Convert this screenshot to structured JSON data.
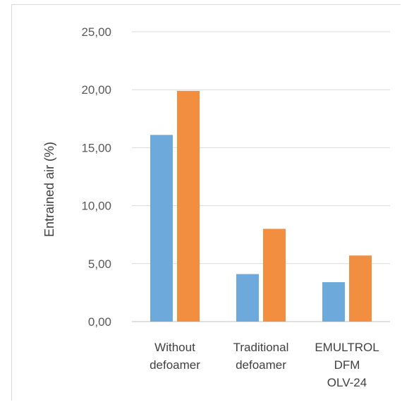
{
  "chart_data": {
    "type": "bar",
    "title": "",
    "xlabel": "",
    "ylabel": "Entrained air (%)",
    "ylim": [
      0,
      25
    ],
    "yticks": [
      "0,00",
      "5,00",
      "10,00",
      "15,00",
      "20,00",
      "25,00"
    ],
    "grid": true,
    "categories": [
      [
        "Without",
        "defoamer"
      ],
      [
        "Traditional",
        "defoamer"
      ],
      [
        "EMULTROL",
        "DFM",
        "OLV-24"
      ]
    ],
    "series": [
      {
        "values": [
          16.1,
          4.1,
          3.4
        ],
        "color": "#6ea9db"
      },
      {
        "values": [
          19.9,
          8.0,
          5.7
        ],
        "color": "#f28e3f"
      }
    ]
  }
}
